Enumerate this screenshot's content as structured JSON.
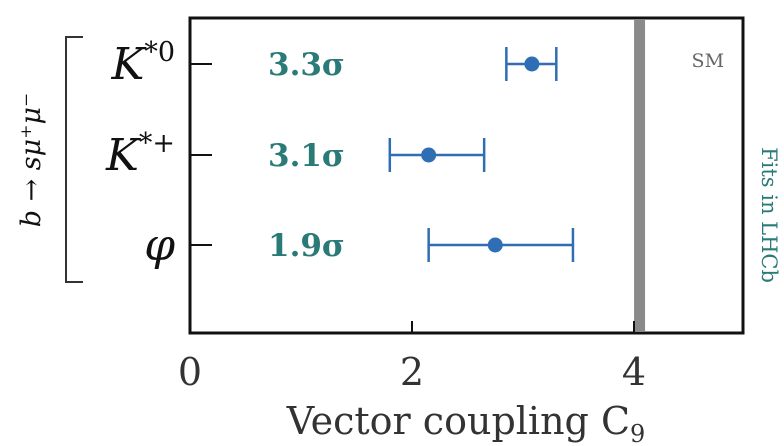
{
  "chart_data": {
    "type": "scatter",
    "title": "",
    "xlabel": "Vector coupling C",
    "xlabel_subscript": "9",
    "ylabel": "",
    "xlim": [
      0,
      5
    ],
    "x_ticks": [
      "0",
      "2",
      "4"
    ],
    "x_tick_values": [
      0,
      2,
      4
    ],
    "grid": false,
    "series": [
      {
        "label": "K*0",
        "label_base": "K",
        "label_sup": "*0",
        "value": 3.08,
        "err_low": 2.85,
        "err_high": 3.3,
        "significance": "3.3σ"
      },
      {
        "label": "K*+",
        "label_base": "K",
        "label_sup": "*+",
        "value": 2.15,
        "err_low": 1.8,
        "err_high": 2.65,
        "significance": "3.1σ"
      },
      {
        "label": "φ",
        "label_base": "φ",
        "label_sup": "",
        "value": 2.75,
        "err_low": 2.15,
        "err_high": 3.45,
        "significance": "1.9σ"
      }
    ],
    "reference_line": {
      "value": 4.05,
      "label": "SM",
      "color": "#8a8a8a"
    },
    "group_label": "b → sμ⁺μ⁻",
    "side_label": "Fits in LHCb",
    "colors": {
      "point": "#2f6eb5",
      "significance": "#2a7a78",
      "side_label": "#2a7a78",
      "axis": "#111111",
      "reference": "#8a8a8a"
    }
  }
}
